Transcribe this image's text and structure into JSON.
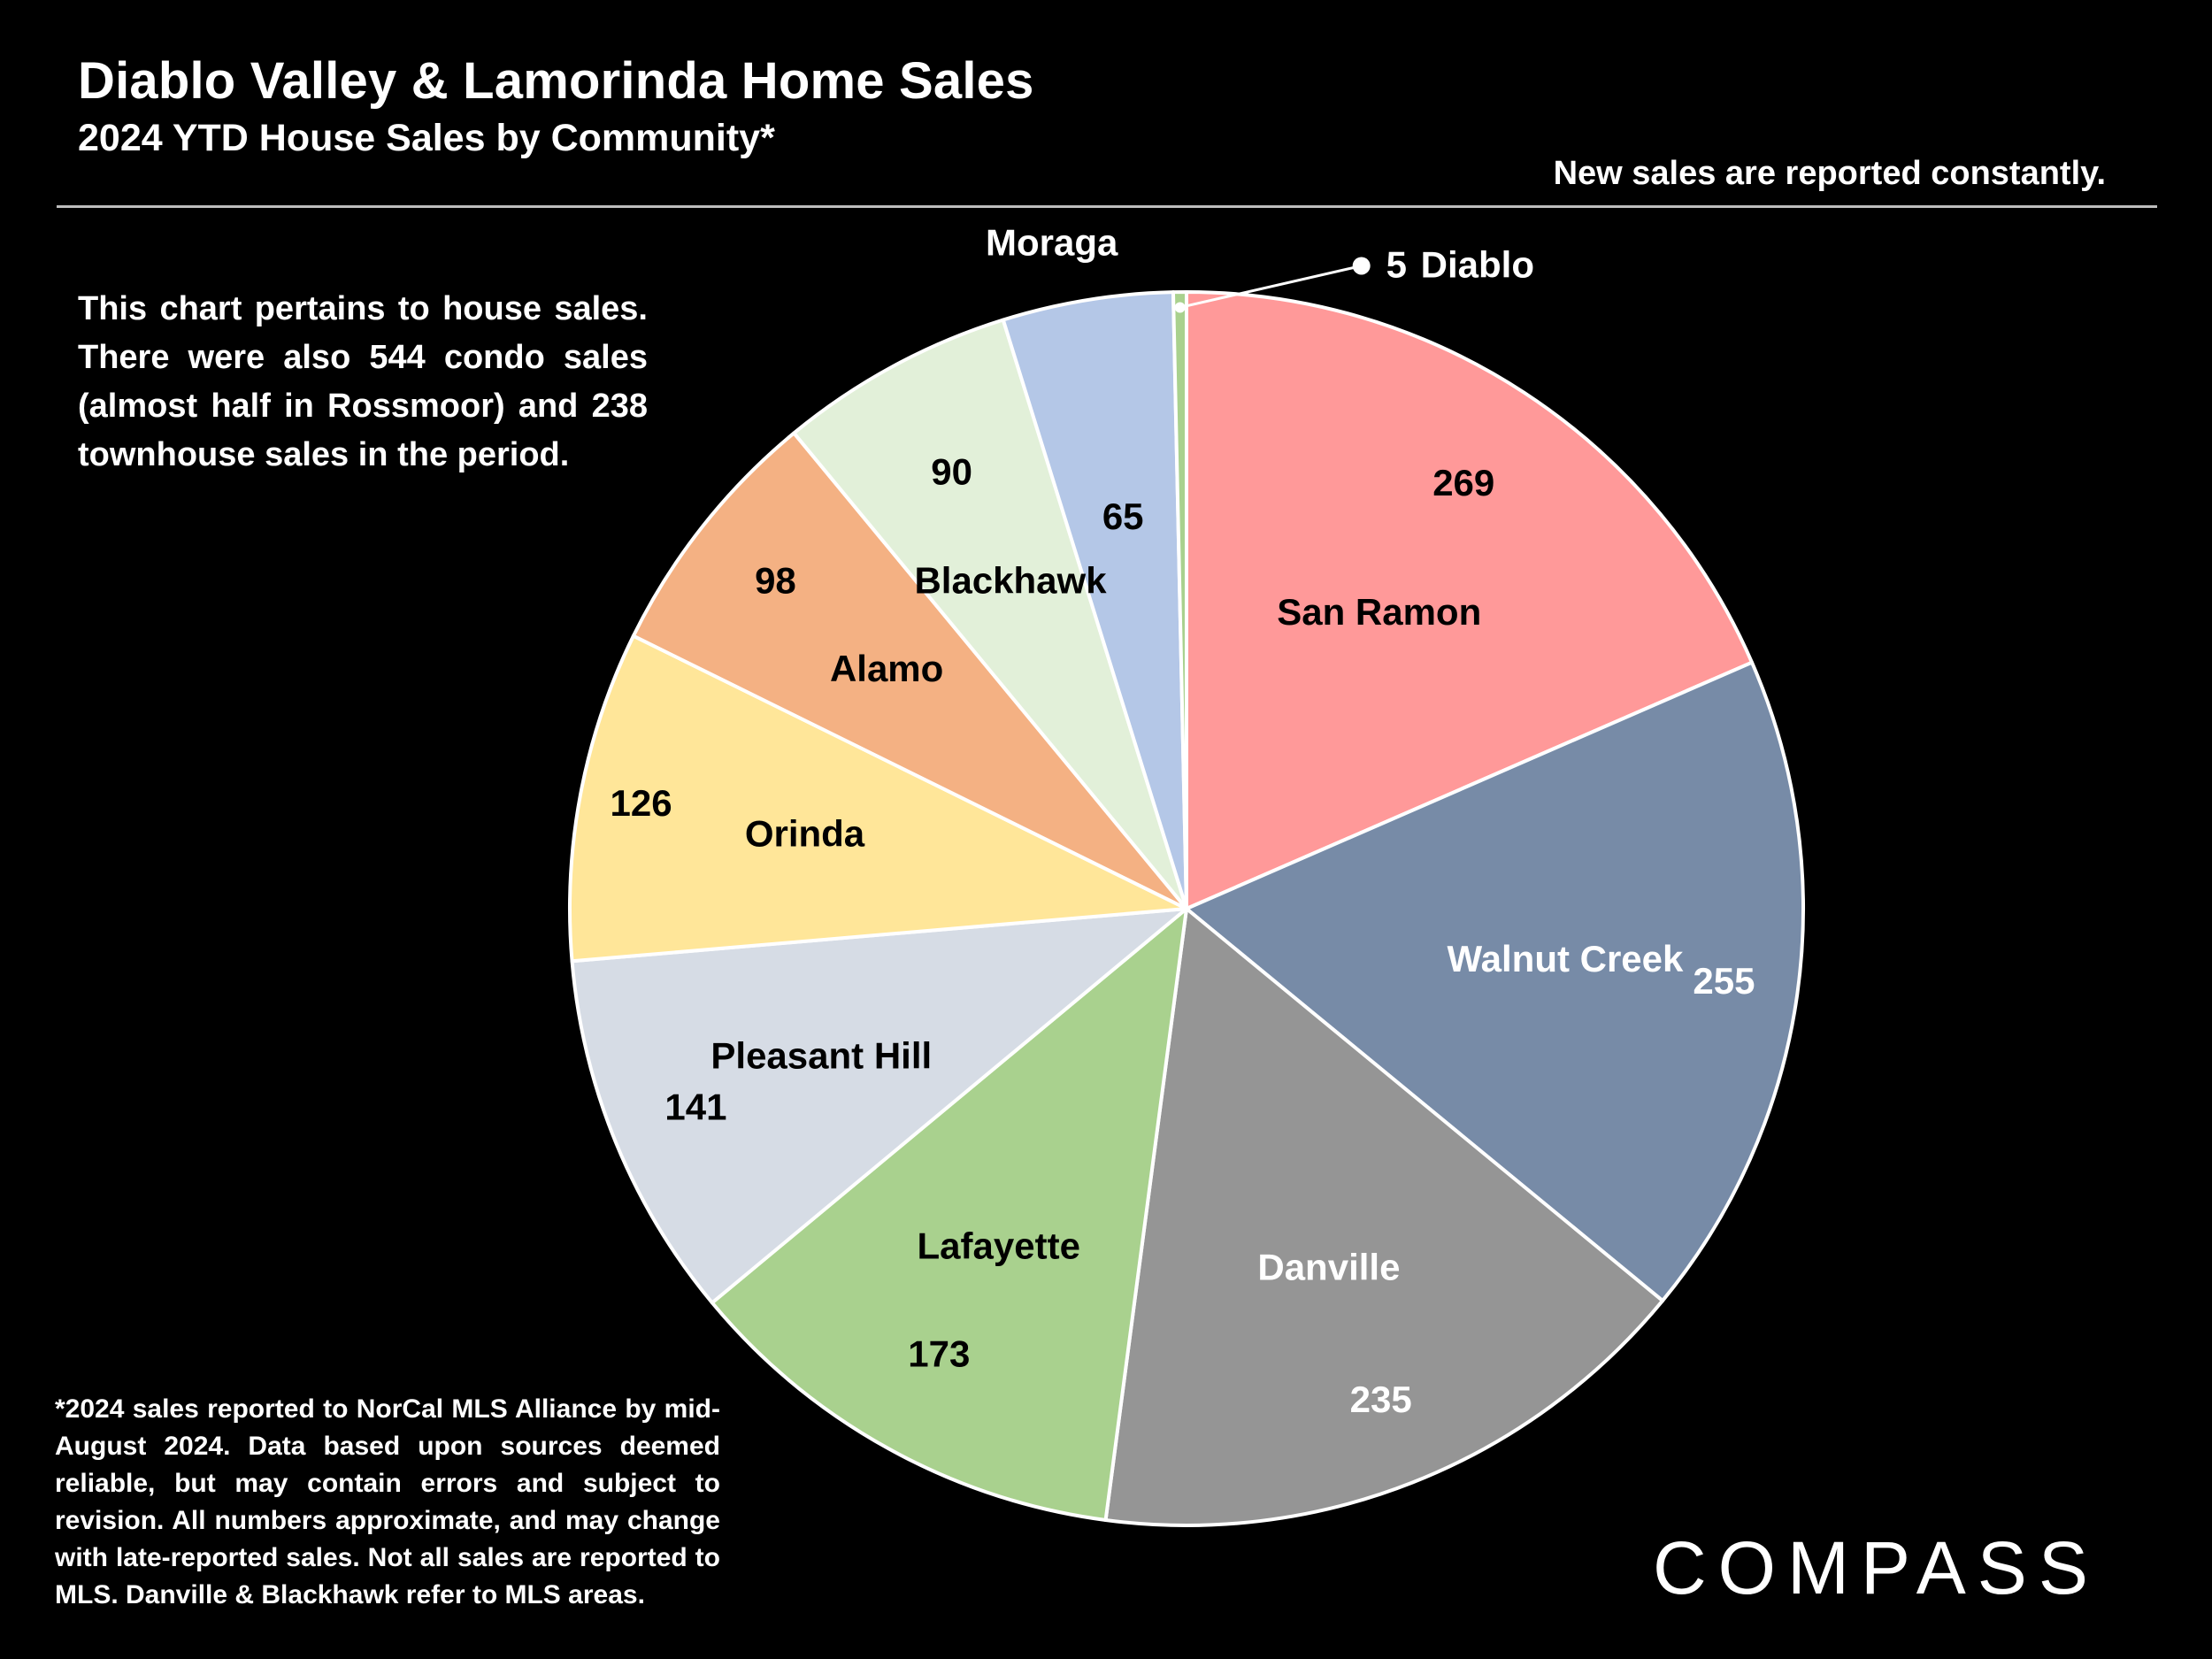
{
  "header": {
    "title": "Diablo Valley & Lamorinda Home Sales",
    "subtitle": "2024 YTD House Sales by Community*",
    "notice": "New sales are reported constantly."
  },
  "note": "This chart pertains to house sales. There were also 544 condo sales (almost half in Rossmoor) and 238 townhouse sales in the period.",
  "footnote": "*2024 sales reported to NorCal MLS Alliance by mid-August 2024. Data based upon sources deemed reliable, but may contain errors and subject to revision. All numbers approximate, and may change with late-reported sales. Not all sales are reported to MLS. Danville & Blackhawk refer to MLS areas.",
  "logo": "COMPASS",
  "chart_data": {
    "type": "pie",
    "title": "2024 YTD House Sales by Community*",
    "start": "12 o'clock",
    "direction": "clockwise",
    "slices": [
      {
        "name": "San Ramon",
        "value": 269,
        "color": "#FF9999",
        "label_color": "#000000"
      },
      {
        "name": "Walnut Creek",
        "value": 255,
        "color": "#778BA7",
        "label_color": "#FFFFFF"
      },
      {
        "name": "Danville",
        "value": 235,
        "color": "#959595",
        "label_color": "#FFFFFF"
      },
      {
        "name": "Lafayette",
        "value": 173,
        "color": "#A9D18E",
        "label_color": "#000000"
      },
      {
        "name": "Pleasant Hill",
        "value": 141,
        "color": "#D6DCE5",
        "label_color": "#000000"
      },
      {
        "name": "Orinda",
        "value": 126,
        "color": "#FFE699",
        "label_color": "#000000"
      },
      {
        "name": "Alamo",
        "value": 98,
        "color": "#F4B183",
        "label_color": "#000000"
      },
      {
        "name": "Blackhawk",
        "value": 90,
        "color": "#E2F0D9",
        "label_color": "#000000"
      },
      {
        "name": "Moraga",
        "value": 65,
        "color": "#B4C7E7",
        "label_color": "#000000"
      },
      {
        "name": "Diablo",
        "value": 5,
        "color": "#A9D18E",
        "label_color": "#FFFFFF"
      }
    ],
    "slice_border": "#FFFFFF",
    "legend": "none"
  }
}
